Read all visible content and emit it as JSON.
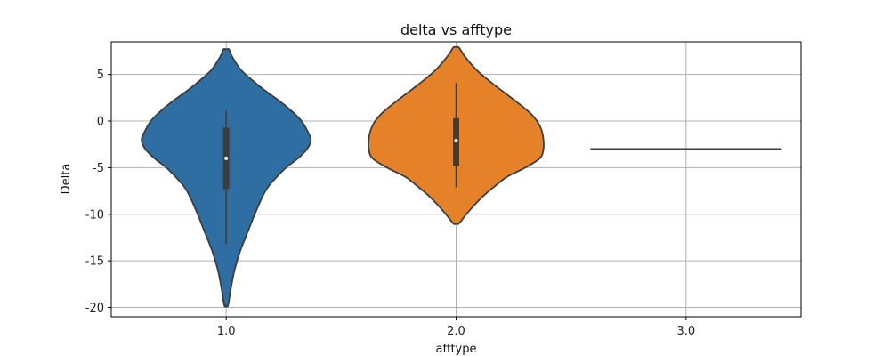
{
  "chart_data": {
    "type": "violin",
    "title": "delta vs afftype",
    "xlabel": "afftype",
    "ylabel": "Delta",
    "categories": [
      "1.0",
      "2.0",
      "3.0"
    ],
    "ylim": [
      -21,
      8.5
    ],
    "yticks": [
      5,
      0,
      -5,
      -10,
      -15,
      -20
    ],
    "grid": true,
    "colors": [
      "#2f6ea3",
      "#e58229",
      "#2f6ea3"
    ],
    "series": [
      {
        "category": "1.0",
        "min": -19.8,
        "max": 7.7,
        "whisker_low": -13.2,
        "q1": -7.3,
        "median": -4.0,
        "q3": -0.7,
        "whisker_high": 1.1,
        "density": [
          [
            7.7,
            0.03
          ],
          [
            7.0,
            0.06
          ],
          [
            5.5,
            0.16
          ],
          [
            4.0,
            0.33
          ],
          [
            3.0,
            0.46
          ],
          [
            2.0,
            0.6
          ],
          [
            1.0,
            0.72
          ],
          [
            0.0,
            0.82
          ],
          [
            -1.0,
            0.88
          ],
          [
            -2.0,
            0.92
          ],
          [
            -3.0,
            0.88
          ],
          [
            -4.0,
            0.78
          ],
          [
            -5.0,
            0.65
          ],
          [
            -6.0,
            0.55
          ],
          [
            -7.0,
            0.46
          ],
          [
            -8.0,
            0.4
          ],
          [
            -10.0,
            0.31
          ],
          [
            -12.0,
            0.23
          ],
          [
            -14.0,
            0.15
          ],
          [
            -16.0,
            0.09
          ],
          [
            -18.0,
            0.05
          ],
          [
            -19.8,
            0.02
          ]
        ]
      },
      {
        "category": "2.0",
        "min": -11.0,
        "max": 7.9,
        "whisker_low": -7.1,
        "q1": -4.8,
        "median": -2.1,
        "q3": 0.3,
        "whisker_high": 4.1,
        "density": [
          [
            7.9,
            0.03
          ],
          [
            7.0,
            0.09
          ],
          [
            5.5,
            0.22
          ],
          [
            4.0,
            0.4
          ],
          [
            2.5,
            0.6
          ],
          [
            1.0,
            0.79
          ],
          [
            0.0,
            0.88
          ],
          [
            -1.0,
            0.93
          ],
          [
            -2.0,
            0.95
          ],
          [
            -3.0,
            0.95
          ],
          [
            -4.0,
            0.91
          ],
          [
            -5.0,
            0.75
          ],
          [
            -6.0,
            0.55
          ],
          [
            -7.0,
            0.42
          ],
          [
            -8.0,
            0.3
          ],
          [
            -9.0,
            0.2
          ],
          [
            -10.0,
            0.11
          ],
          [
            -11.0,
            0.03
          ]
        ]
      },
      {
        "category": "3.0",
        "line_value": -3.0
      }
    ]
  }
}
